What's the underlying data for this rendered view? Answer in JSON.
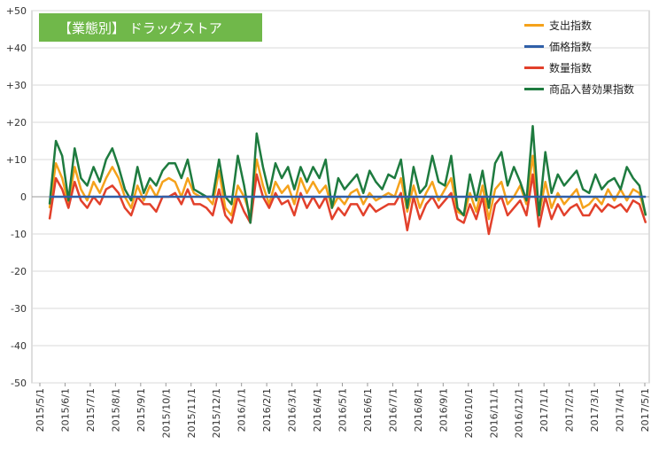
{
  "chart_data": {
    "type": "line",
    "title": "【業態別】 ドラッグストア",
    "ylim": [
      -50,
      50
    ],
    "y_ticks": [
      "+50",
      "+40",
      "+30",
      "+20",
      "+10",
      "0",
      "-10",
      "-20",
      "-30",
      "-40",
      "-50"
    ],
    "x_ticks": [
      "2015/5/1",
      "2015/6/1",
      "2015/7/1",
      "2015/8/1",
      "2015/9/1",
      "2015/10/1",
      "2015/11/1",
      "2015/12/1",
      "2016/1/1",
      "2016/2/1",
      "2016/3/1",
      "2016/4/1",
      "2016/5/1",
      "2016/6/1",
      "2016/7/1",
      "2016/8/1",
      "2016/9/1",
      "2016/10/1",
      "2016/11/1",
      "2016/12/1",
      "2017/1/1",
      "2017/2/1",
      "2017/3/1",
      "2017/4/1",
      "2017/5/1"
    ],
    "grid": true,
    "legend_position": "top-right",
    "series": [
      {
        "name": "支出指数",
        "color": "#f5a21b",
        "values": [
          -3,
          9,
          5,
          -2,
          8,
          2,
          -1,
          4,
          1,
          5,
          8,
          5,
          0,
          -3,
          3,
          -1,
          3,
          0,
          4,
          5,
          4,
          0,
          5,
          1,
          0,
          0,
          -2,
          7,
          -3,
          -5,
          3,
          0,
          -5,
          10,
          3,
          -2,
          4,
          1,
          3,
          -2,
          5,
          1,
          4,
          1,
          3,
          -3,
          0,
          -2,
          1,
          2,
          -2,
          1,
          -1,
          0,
          1,
          0,
          5,
          -4,
          3,
          -3,
          1,
          4,
          -1,
          2,
          5,
          -4,
          -5,
          1,
          -4,
          3,
          -6,
          2,
          4,
          -2,
          0,
          3,
          -2,
          11,
          -5,
          4,
          -3,
          1,
          -2,
          0,
          2,
          -3,
          -2,
          0,
          -2,
          2,
          -1,
          2,
          -1,
          2,
          1,
          -5
        ]
      },
      {
        "name": "価格指数",
        "color": "#2f5fa8",
        "values": [
          0,
          0,
          0,
          0,
          0,
          0,
          0,
          0,
          0,
          0,
          0,
          0,
          0,
          0,
          0,
          0,
          0,
          0,
          0,
          0,
          0,
          0,
          0,
          0,
          0,
          0,
          0,
          0,
          0,
          0,
          0,
          0,
          0,
          0,
          0,
          0,
          0,
          0,
          0,
          0,
          0,
          0,
          0,
          0,
          0,
          0,
          0,
          0,
          0,
          0,
          0,
          0,
          0,
          0,
          0,
          0,
          0,
          0,
          0,
          0,
          0,
          0,
          0,
          0,
          0,
          0,
          0,
          0,
          0,
          0,
          0,
          0,
          0,
          0,
          0,
          0,
          0,
          0,
          0,
          0,
          0,
          0,
          0,
          0,
          0,
          0,
          0,
          0,
          0,
          0,
          0,
          0,
          0,
          0,
          0,
          0
        ]
      },
      {
        "name": "数量指数",
        "color": "#e2402b",
        "values": [
          -6,
          5,
          2,
          -3,
          4,
          -1,
          -3,
          0,
          -2,
          2,
          3,
          1,
          -3,
          -5,
          0,
          -2,
          -2,
          -4,
          0,
          0,
          1,
          -2,
          2,
          -2,
          -2,
          -3,
          -5,
          2,
          -5,
          -7,
          0,
          -4,
          -7,
          6,
          0,
          -3,
          1,
          -2,
          -1,
          -5,
          1,
          -3,
          0,
          -3,
          0,
          -6,
          -3,
          -5,
          -2,
          -2,
          -5,
          -2,
          -4,
          -3,
          -2,
          -2,
          1,
          -9,
          0,
          -6,
          -2,
          0,
          -3,
          -1,
          1,
          -6,
          -7,
          -2,
          -6,
          0,
          -10,
          -2,
          0,
          -5,
          -3,
          -1,
          -5,
          6,
          -8,
          0,
          -6,
          -2,
          -5,
          -3,
          -2,
          -5,
          -5,
          -2,
          -4,
          -2,
          -3,
          -2,
          -4,
          -1,
          -2,
          -7
        ]
      },
      {
        "name": "商品入替効果指数",
        "color": "#1e7b3f",
        "values": [
          -2,
          15,
          11,
          -1,
          13,
          5,
          3,
          8,
          4,
          10,
          13,
          8,
          2,
          -1,
          8,
          1,
          5,
          3,
          7,
          9,
          9,
          5,
          10,
          2,
          1,
          0,
          0,
          10,
          0,
          -2,
          11,
          3,
          -7,
          17,
          8,
          1,
          9,
          5,
          8,
          2,
          8,
          4,
          8,
          5,
          10,
          -3,
          5,
          2,
          4,
          6,
          1,
          7,
          4,
          2,
          6,
          5,
          10,
          -3,
          8,
          1,
          3,
          11,
          4,
          3,
          11,
          -3,
          -5,
          6,
          -1,
          7,
          -3,
          9,
          12,
          3,
          8,
          4,
          -1,
          19,
          -5,
          12,
          1,
          6,
          3,
          5,
          7,
          2,
          1,
          6,
          2,
          4,
          5,
          2,
          8,
          5,
          3,
          -5
        ]
      }
    ]
  }
}
